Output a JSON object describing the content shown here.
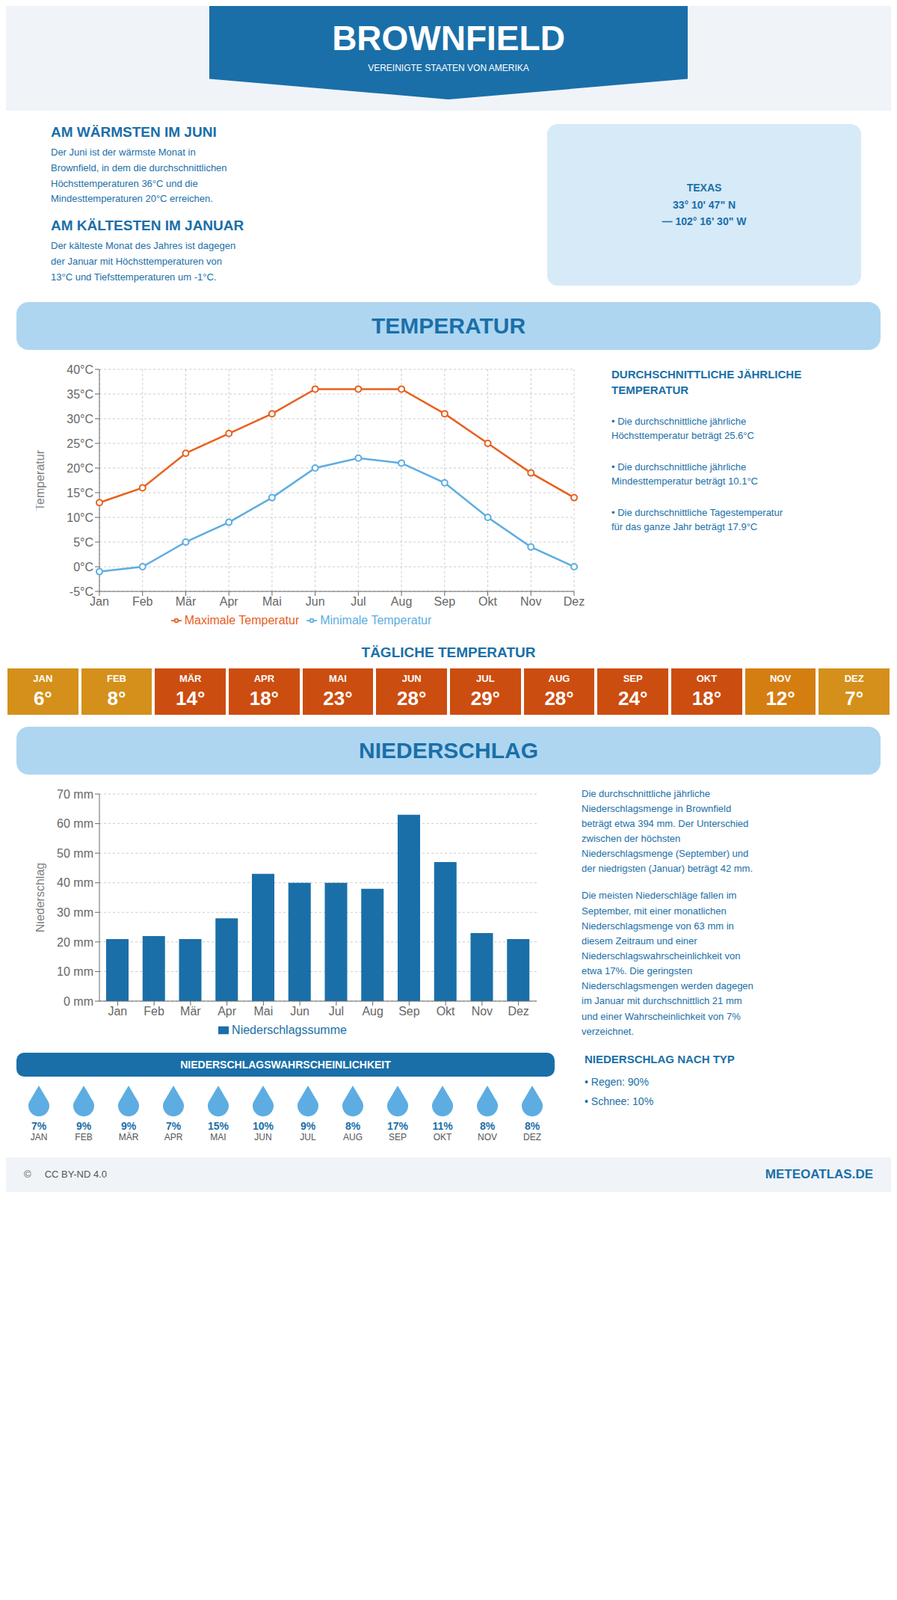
{
  "chart_data": [
    {
      "type": "line",
      "title": "BROWNFIELD",
      "subtitle": "VEREINIGTE STAATEN VON AMERIKA",
      "annotations": [
        "TEXAS\n33° 10' 47\" N\n— 102° 16' 30\" W",
        "AM WÄRMSTEN IM JUNI",
        "Der Juni ist der wärmste Monat in\nBrownfield, in dem die durchschnittlichen\nHöchsttemperaturen 36°C und die\nMindesttemperaturen 20°C erreichen.",
        "AM KÄLTESTEN IM JANUAR",
        "Der kälteste Monat des Jahres ist dagegen\nder Januar mit Höchsttemperaturen von\n13°C und Tiefsttemperaturen um -1°C.",
        "TEMPERATUR",
        "DURCHSCHNITTLICHE JÄHRLICHE\nTEMPERATUR",
        "• Die durchschnittliche jährliche\nHöchsttemperatur beträgt 25.6°C",
        "• Die durchschnittliche jährliche\nMindesttemperatur beträgt 10.1°C",
        "• Die durchschnittliche Tagestemperatur\nfür das ganze Jahr beträgt 17.9°C"
      ],
      "categories": [
        "Jan",
        "Feb",
        "Mär",
        "Apr",
        "Mai",
        "Jun",
        "Jul",
        "Aug",
        "Sep",
        "Okt",
        "Nov",
        "Dez"
      ],
      "series": [
        {
          "name": "Maximale Temperatur",
          "color": "#e8601c",
          "marker": "o",
          "values": [
            13,
            16,
            23,
            27,
            31,
            36,
            36,
            36,
            31,
            25,
            19,
            14
          ]
        },
        {
          "name": "Minimale Temperatur",
          "color": "#5dade2",
          "marker": "o",
          "values": [
            -1,
            0,
            5,
            9,
            14,
            20,
            22,
            21,
            17,
            10,
            4,
            0
          ]
        }
      ],
      "ylabel": "Temperatur",
      "ylim": [
        -5,
        40
      ],
      "yticks": [
        {
          "value": -5,
          "label": "-5°C"
        },
        {
          "value": 0,
          "label": "0°C"
        },
        {
          "value": 5,
          "label": "5°C"
        },
        {
          "value": 10,
          "label": "10°C"
        },
        {
          "value": 15,
          "label": "15°C"
        },
        {
          "value": 20,
          "label": "20°C"
        },
        {
          "value": 25,
          "label": "25°C"
        },
        {
          "value": 30,
          "label": "30°C"
        },
        {
          "value": 35,
          "label": "35°C"
        },
        {
          "value": 40,
          "label": "40°C"
        }
      ],
      "grid": true,
      "legend": "bottom"
    },
    {
      "type": "table",
      "title": "TÄGLICHE TEMPERATUR",
      "categories": [
        "JAN",
        "FEB",
        "MÄR",
        "APR",
        "MAI",
        "JUN",
        "JUL",
        "AUG",
        "SEP",
        "OKT",
        "NOV",
        "DEZ"
      ],
      "values": [
        6,
        8,
        14,
        18,
        23,
        28,
        29,
        28,
        24,
        18,
        12,
        7
      ],
      "value_labels": [
        "6°",
        "8°",
        "14°",
        "18°",
        "23°",
        "28°",
        "29°",
        "28°",
        "24°",
        "18°",
        "12°",
        "7°"
      ],
      "colors": [
        "#d4901a",
        "#d4901a",
        "#cc4d10",
        "#cc4d10",
        "#cc4d10",
        "#cc4d10",
        "#cc4d10",
        "#cc4d10",
        "#cc4d10",
        "#cc4d10",
        "#d47e12",
        "#d4901a"
      ],
      "data_labels": true
    },
    {
      "type": "bar",
      "title": "NIEDERSCHLAG",
      "annotations": [
        "Die durchschnittliche jährliche\nNiederschlagsmenge in Brownfield\nbeträgt etwa 394 mm. Der Unterschied\nzwischen der höchsten\nNiederschlagsmenge (September) und\nder niedrigsten (Januar) beträgt 42 mm.",
        "Die meisten Niederschläge fallen im\nSeptember, mit einer monatlichen\nNiederschlagsmenge von 63 mm in\ndiesem Zeitraum und einer\nNiederschlagswahrscheinlichkeit von\netwa 17%. Die geringsten\nNiederschlagsmengen werden dagegen\nim Januar mit durchschnittlich 21 mm\nund einer Wahrscheinlichkeit von 7%\nverzeichnet."
      ],
      "categories": [
        "Jan",
        "Feb",
        "Mär",
        "Apr",
        "Mai",
        "Jun",
        "Jul",
        "Aug",
        "Sep",
        "Okt",
        "Nov",
        "Dez"
      ],
      "series": [
        {
          "name": "Niederschlagssumme",
          "color": "#1a6fa8",
          "values": [
            21,
            22,
            21,
            28,
            43,
            40,
            40,
            38,
            63,
            47,
            23,
            21
          ]
        }
      ],
      "ylabel": "Niederschlag",
      "ylim": [
        0,
        70
      ],
      "yticks": [
        {
          "value": 0,
          "label": "0 mm"
        },
        {
          "value": 10,
          "label": "10 mm"
        },
        {
          "value": 20,
          "label": "20 mm"
        },
        {
          "value": 30,
          "label": "30 mm"
        },
        {
          "value": 40,
          "label": "40 mm"
        },
        {
          "value": 50,
          "label": "50 mm"
        },
        {
          "value": 60,
          "label": "60 mm"
        },
        {
          "value": 70,
          "label": "70 mm"
        }
      ],
      "grid": "y",
      "legend": "bottom"
    },
    {
      "type": "table",
      "title": "NIEDERSCHLAGSWAHRSCHEINLICHKEIT",
      "annotations": [
        "NIEDERSCHLAG NACH TYP",
        "• Regen: 90%",
        "• Schnee: 10%",
        "©     CC BY-ND 4.0",
        "METEOATLAS.DE"
      ],
      "categories": [
        "JAN",
        "FEB",
        "MÄR",
        "APR",
        "MAI",
        "JUN",
        "JUL",
        "AUG",
        "SEP",
        "OKT",
        "NOV",
        "DEZ"
      ],
      "values": [
        7,
        9,
        9,
        7,
        15,
        10,
        9,
        8,
        17,
        11,
        8,
        8
      ],
      "value_labels": [
        "7%",
        "9%",
        "9%",
        "7%",
        "15%",
        "10%",
        "9%",
        "8%",
        "17%",
        "11%",
        "8%",
        "8%"
      ],
      "color": "#5dade2",
      "data_labels": true
    }
  ]
}
